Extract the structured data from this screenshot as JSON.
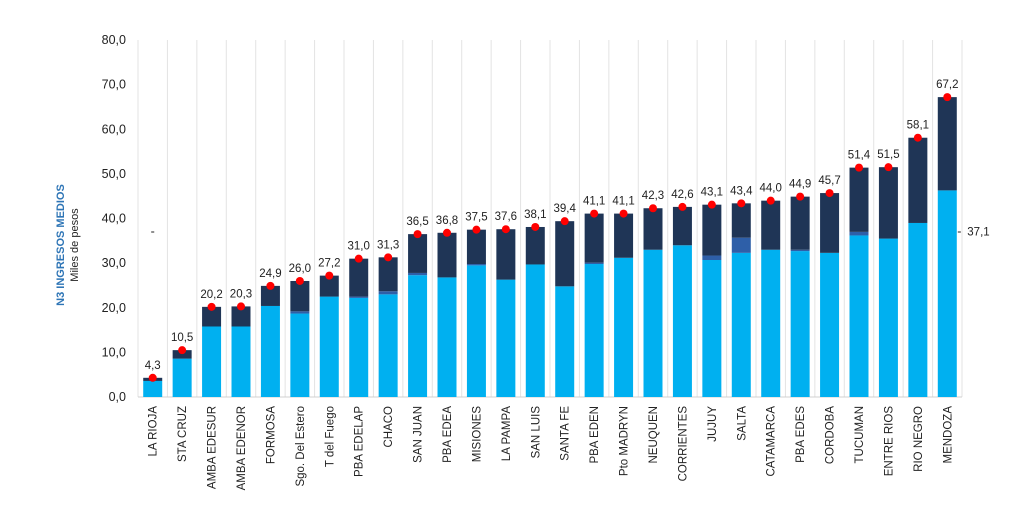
{
  "chart_data": {
    "type": "bar",
    "stacked": true,
    "ylabel_title": "N3 INGRESOS MEDIOS",
    "ylabel_units": "Miles de pesos",
    "ylim": [
      0,
      80
    ],
    "yticks": [
      "0,0",
      "10,0",
      "20,0",
      "30,0",
      "40,0",
      "50,0",
      "60,0",
      "70,0",
      "80,0"
    ],
    "grid": "vertical",
    "categories": [
      "LA RIOJA",
      "STA CRUZ",
      "AMBA EDESUR",
      "AMBA EDENOR",
      "FORMOSA",
      "Sgo. Del Estero",
      "T del Fuego",
      "PBA EDELAP",
      "CHACO",
      "SAN JUAN",
      "PBA EDEA",
      "MISIONES",
      "LA PAMPA",
      "SAN LUIS",
      "SANTA FE",
      "PBA EDEN",
      "Pto MADRYN",
      "NEUQUEN",
      "CORRIENTES",
      "JUJUY",
      "SALTA",
      "CATAMARCA",
      "PBA EDES",
      "CORDOBA",
      "TUCUMAN",
      "ENTRE RIOS",
      "RIO NEGRO",
      "MENDOZA"
    ],
    "totals": [
      4.3,
      10.5,
      20.2,
      20.3,
      24.9,
      26.0,
      27.2,
      31.0,
      31.3,
      36.5,
      36.8,
      37.5,
      37.6,
      38.1,
      39.4,
      41.1,
      41.1,
      42.3,
      42.6,
      43.1,
      43.4,
      44.0,
      44.9,
      45.7,
      51.4,
      51.5,
      58.1,
      67.2
    ],
    "total_labels": [
      "4,3",
      "10,5",
      "20,2",
      "20,3",
      "24,9",
      "26,0",
      "27,2",
      "31,0",
      "31,3",
      "36,5",
      "36,8",
      "37,5",
      "37,6",
      "38,1",
      "39,4",
      "41,1",
      "41,1",
      "42,3",
      "42,6",
      "43,1",
      "43,4",
      "44,0",
      "44,9",
      "45,7",
      "51,4",
      "51,5",
      "58,1",
      "67,2"
    ],
    "series": [
      {
        "color": "#00b0f0",
        "values": [
          3.6,
          8.6,
          15.8,
          15.8,
          20.4,
          18.7,
          22.5,
          22.2,
          23.0,
          27.3,
          26.8,
          29.5,
          26.3,
          29.7,
          24.8,
          29.8,
          31.2,
          33.0,
          34.0,
          30.7,
          32.3,
          33.0,
          32.7,
          32.3,
          36.2,
          35.5,
          39.0,
          46.3
        ]
      },
      {
        "color": "#2e5fa8",
        "values": [
          0.0,
          0.0,
          0.0,
          0.0,
          0.0,
          0.5,
          0.0,
          0.3,
          0.7,
          0.5,
          0.0,
          0.3,
          0.0,
          0.0,
          0.0,
          0.3,
          0.0,
          0.0,
          0.0,
          1.0,
          3.4,
          0.0,
          0.3,
          0.0,
          0.8,
          0.0,
          0.0,
          0.0
        ]
      },
      {
        "color": "#1f3556",
        "values": [
          0.7,
          1.9,
          4.4,
          4.5,
          4.5,
          6.8,
          4.7,
          8.5,
          7.6,
          8.7,
          10.0,
          7.7,
          11.3,
          8.4,
          14.6,
          11.0,
          9.9,
          9.3,
          8.6,
          11.4,
          7.7,
          11.0,
          11.9,
          13.4,
          14.4,
          16.0,
          19.1,
          20.9
        ]
      }
    ],
    "total_marker_color": "#ff0000",
    "reference_line": {
      "value": 37.1,
      "label": "37,1",
      "marker": "-"
    }
  }
}
